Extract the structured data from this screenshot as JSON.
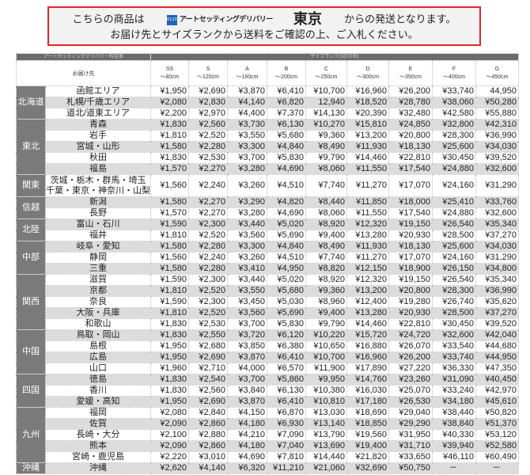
{
  "notice": {
    "line1_prefix": "こちらの商品は",
    "logo_mark": "0123",
    "logo_text": "アートセッティングデリバリー",
    "origin_city": "東京",
    "line1_suffix": "からの発送となります。",
    "line2": "お届け先とサイズランクから送料をご確認の上、ご入札ください。",
    "border_color": "#e0262a"
  },
  "table": {
    "title": "アートセッティングデリバリー料金表",
    "size_group_label": "サイズランク(3辺の和)",
    "destination_label": "お届け先",
    "sizes": [
      {
        "rank": "SS",
        "limit": "～80cm"
      },
      {
        "rank": "S",
        "limit": "～120cm"
      },
      {
        "rank": "A",
        "limit": "～160cm"
      },
      {
        "rank": "B",
        "limit": "～200cm"
      },
      {
        "rank": "C",
        "limit": "～250cm"
      },
      {
        "rank": "D",
        "limit": "～300cm"
      },
      {
        "rank": "E",
        "limit": "～350cm"
      },
      {
        "rank": "F",
        "limit": "～400cm"
      },
      {
        "rank": "G",
        "limit": "～450cm"
      }
    ],
    "regions": [
      {
        "name": "北海道",
        "rows": [
          {
            "area": "函館エリア",
            "prices": [
              "¥1,950",
              "¥2,690",
              "¥3,870",
              "¥6,410",
              "¥10,700",
              "¥16,960",
              "¥26,200",
              "¥33,740",
              "44,950"
            ]
          },
          {
            "area": "札幌/千歳エリア",
            "prices": [
              "¥2,080",
              "¥2,830",
              "¥4,140",
              "¥6,820",
              "12,940",
              "¥18,520",
              "¥28,780",
              "¥38,060",
              "¥50,280"
            ]
          },
          {
            "area": "道北/道東エリア",
            "prices": [
              "¥2,200",
              "¥2,970",
              "¥4,400",
              "¥7,370",
              "¥14,130",
              "¥20,390",
              "¥32,480",
              "¥42,580",
              "¥55,880"
            ]
          }
        ]
      },
      {
        "name": "東北",
        "rows": [
          {
            "area": "青森",
            "prices": [
              "¥1,830",
              "¥2,560",
              "¥3,730",
              "¥6,130",
              "¥10,270",
              "¥15,810",
              "¥24,850",
              "¥32,800",
              "¥42,310"
            ]
          },
          {
            "area": "岩手",
            "prices": [
              "¥1,810",
              "¥2,520",
              "¥3,550",
              "¥5,680",
              "¥9,360",
              "¥13,200",
              "¥20,800",
              "¥28,300",
              "¥36,990"
            ]
          },
          {
            "area": "宮城・山形",
            "prices": [
              "¥1,580",
              "¥2,280",
              "¥3,300",
              "¥4,840",
              "¥8,490",
              "¥11,930",
              "¥18,130",
              "¥25,600",
              "¥34,030"
            ]
          },
          {
            "area": "秋田",
            "prices": [
              "¥1,830",
              "¥2,530",
              "¥3,700",
              "¥5,830",
              "¥9,790",
              "¥14,460",
              "¥22,810",
              "¥30,450",
              "¥39,520"
            ]
          },
          {
            "area": "福島",
            "prices": [
              "¥1,570",
              "¥2,270",
              "¥3,280",
              "¥4,690",
              "¥8,060",
              "¥11,550",
              "¥17,540",
              "¥24,880",
              "¥32,600"
            ]
          }
        ]
      },
      {
        "name": "関東",
        "rows": [
          {
            "area": "茨城・栃木・群馬・埼玉",
            "area2": "千葉・東京・神奈川・山梨",
            "prices": [
              "¥1,560",
              "¥2,240",
              "¥3,260",
              "¥4,510",
              "¥7,740",
              "¥11,270",
              "¥17,070",
              "¥24,160",
              "¥31,290"
            ]
          }
        ]
      },
      {
        "name": "信越",
        "rows": [
          {
            "area": "新潟",
            "prices": [
              "¥1,580",
              "¥2,270",
              "¥3,290",
              "¥4,820",
              "¥8,440",
              "¥11,850",
              "¥18,000",
              "¥25,410",
              "¥33,760"
            ]
          },
          {
            "area": "長野",
            "prices": [
              "¥1,570",
              "¥2,270",
              "¥3,280",
              "¥4,690",
              "¥8,060",
              "¥11,550",
              "¥17,540",
              "¥24,880",
              "¥32,600"
            ]
          }
        ]
      },
      {
        "name": "北陸",
        "rows": [
          {
            "area": "富山・石川",
            "prices": [
              "¥1,590",
              "¥2,300",
              "¥3,440",
              "¥5,020",
              "¥8,920",
              "¥12,320",
              "¥19,150",
              "¥26,540",
              "¥35,340"
            ]
          },
          {
            "area": "福井",
            "prices": [
              "¥1,810",
              "¥2,520",
              "¥3,560",
              "¥5,690",
              "¥9,400",
              "¥13,280",
              "¥20,930",
              "¥28,500",
              "¥37,270"
            ]
          }
        ]
      },
      {
        "name": "中部",
        "rows": [
          {
            "area": "岐阜・愛知",
            "prices": [
              "¥1,580",
              "¥2,280",
              "¥3,300",
              "¥4,840",
              "¥8,490",
              "¥11,930",
              "¥18,130",
              "¥25,600",
              "¥34,030"
            ]
          },
          {
            "area": "静岡",
            "prices": [
              "¥1,560",
              "¥2,240",
              "¥3,260",
              "¥4,510",
              "¥7,740",
              "¥11,270",
              "¥17,070",
              "¥24,160",
              "¥31,290"
            ]
          },
          {
            "area": "三重",
            "prices": [
              "¥1,580",
              "¥2,280",
              "¥3,410",
              "¥4,950",
              "¥8,820",
              "¥12,150",
              "¥18,900",
              "¥26,150",
              "¥34,800"
            ]
          }
        ]
      },
      {
        "name": "関西",
        "rows": [
          {
            "area": "滋賀",
            "prices": [
              "¥1,590",
              "¥2,300",
              "¥3,440",
              "¥5,020",
              "¥8,920",
              "¥12,320",
              "¥19,150",
              "¥26,540",
              "¥35,340"
            ]
          },
          {
            "area": "京都",
            "prices": [
              "¥1,810",
              "¥2,520",
              "¥3,550",
              "¥5,680",
              "¥9,360",
              "¥13,200",
              "¥20,800",
              "¥28,300",
              "¥36,990"
            ]
          },
          {
            "area": "奈良",
            "prices": [
              "¥1,590",
              "¥2,300",
              "¥3,450",
              "¥5,030",
              "¥8,960",
              "¥12,400",
              "¥19,280",
              "¥26,740",
              "¥35,620"
            ]
          },
          {
            "area": "大阪・兵庫",
            "prices": [
              "¥1,810",
              "¥2,520",
              "¥3,560",
              "¥5,690",
              "¥9,400",
              "¥13,280",
              "¥20,930",
              "¥28,500",
              "¥37,270"
            ]
          },
          {
            "area": "和歌山",
            "prices": [
              "¥1,830",
              "¥2,530",
              "¥3,700",
              "¥5,830",
              "¥9,790",
              "¥14,460",
              "¥22,810",
              "¥30,450",
              "¥39,520"
            ]
          }
        ]
      },
      {
        "name": "中国",
        "rows": [
          {
            "area": "鳥取・岡山",
            "prices": [
              "¥1,830",
              "¥2,550",
              "¥3,720",
              "¥6,120",
              "¥10,220",
              "¥15,720",
              "¥24,720",
              "¥32,600",
              "¥42,040"
            ]
          },
          {
            "area": "島根",
            "prices": [
              "¥1,950",
              "¥2,680",
              "¥3,850",
              "¥6,380",
              "¥10,650",
              "¥16,880",
              "¥26,070",
              "¥33,540",
              "¥44,680"
            ]
          },
          {
            "area": "広島",
            "prices": [
              "¥1,950",
              "¥2,690",
              "¥3,870",
              "¥6,410",
              "¥10,700",
              "¥16,960",
              "¥26,200",
              "¥33,740",
              "¥44,950"
            ]
          },
          {
            "area": "山口",
            "prices": [
              "¥1,960",
              "¥2,710",
              "¥4,000",
              "¥6,570",
              "¥11,900",
              "¥17,890",
              "¥27,220",
              "¥36,330",
              "¥47,350"
            ]
          }
        ]
      },
      {
        "name": "四国",
        "rows": [
          {
            "area": "徳島",
            "prices": [
              "¥1,830",
              "¥2,540",
              "¥3,700",
              "¥5,860",
              "¥9,950",
              "¥14,760",
              "¥23,260",
              "¥31,090",
              "¥40,450"
            ]
          },
          {
            "area": "香川",
            "prices": [
              "¥1,830",
              "¥2,560",
              "¥3,840",
              "¥6,130",
              "¥10,380",
              "¥16,030",
              "¥25,070",
              "¥33,240",
              "¥42,970"
            ]
          },
          {
            "area": "愛媛・高知",
            "prices": [
              "¥1,950",
              "¥2,690",
              "¥3,870",
              "¥6,410",
              "¥10,810",
              "¥17,180",
              "¥26,530",
              "¥34,180",
              "¥45,610"
            ]
          }
        ]
      },
      {
        "name": "九州",
        "rows": [
          {
            "area": "福岡",
            "prices": [
              "¥2,080",
              "¥2,840",
              "¥4,150",
              "¥6,870",
              "¥13,030",
              "¥18,690",
              "¥29,040",
              "¥38,440",
              "¥50,820"
            ]
          },
          {
            "area": "佐賀",
            "prices": [
              "¥2,090",
              "¥2,860",
              "¥4,180",
              "¥6,930",
              "¥13,140",
              "¥18,850",
              "¥29,290",
              "¥38,840",
              "¥51,370"
            ]
          },
          {
            "area": "長崎・大分",
            "prices": [
              "¥2,100",
              "¥2,880",
              "¥4,210",
              "¥7,090",
              "¥13,790",
              "¥19,560",
              "¥31,950",
              "¥40,330",
              "¥53,120"
            ]
          },
          {
            "area": "熊本",
            "prices": [
              "¥2,090",
              "¥2,860",
              "¥4,180",
              "¥7,040",
              "¥13,690",
              "¥19,400",
              "¥31,710",
              "¥39,940",
              "¥52,580"
            ]
          },
          {
            "area": "宮崎・鹿児島",
            "prices": [
              "¥2,220",
              "¥3,010",
              "¥4,690",
              "¥7,810",
              "¥14,440",
              "¥21,820",
              "¥33,650",
              "¥46,110",
              "¥60,490"
            ]
          }
        ]
      },
      {
        "name": "沖縄",
        "rows": [
          {
            "area": "沖縄",
            "prices": [
              "¥2,620",
              "¥4,140",
              "¥6,320",
              "¥11,210",
              "¥21,060",
              "¥32,690",
              "¥50,750",
              "－",
              "－"
            ]
          }
        ]
      }
    ]
  }
}
